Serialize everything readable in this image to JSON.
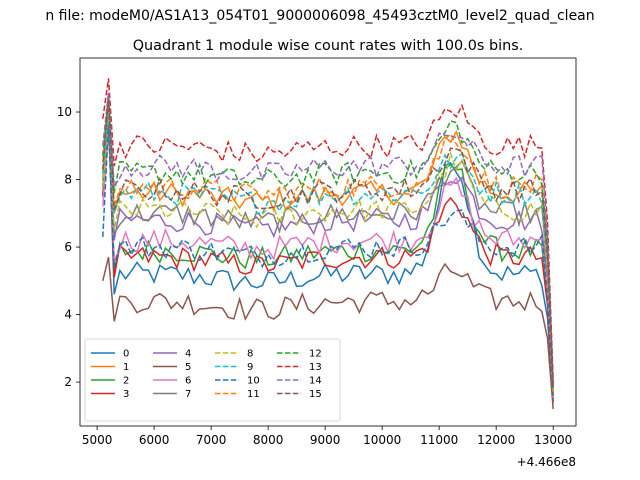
{
  "figure": {
    "suptitle": "n file: modeM0/AS1A13_054T01_9000006098_45493cztM0_level2_quad_clean",
    "offset_label": "+4.466e8"
  },
  "chart_data": {
    "type": "line",
    "title": "Quadrant 1 module wise count rates with 100.0s bins.",
    "xlabel": "",
    "ylabel": "",
    "xlim": [
      4700,
      13400
    ],
    "ylim": [
      0.7,
      11.6
    ],
    "x_offset": 446600000,
    "x_ticks": [
      5000,
      6000,
      7000,
      8000,
      9000,
      10000,
      11000,
      12000,
      13000
    ],
    "y_ticks": [
      2,
      4,
      6,
      8,
      10
    ],
    "grid": false,
    "legend": {
      "location": "lower left",
      "columns": 4
    },
    "x_start": 5100,
    "x_step": 100,
    "x_end": 13000,
    "series": [
      {
        "name": "0",
        "color": "#1f77b4",
        "dash": "solid",
        "approx_level": 5.2,
        "first": 7.5,
        "peak_value": 10.0,
        "peak_at_start": true,
        "hump": 8.6,
        "last": 1.5
      },
      {
        "name": "1",
        "color": "#ff7f0e",
        "dash": "solid",
        "approx_level": 7.6,
        "first": 8.5,
        "peak_value": 10.5,
        "peak_at_start": true,
        "hump": 9.4,
        "last": 1.6
      },
      {
        "name": "2",
        "color": "#2ca02c",
        "dash": "solid",
        "approx_level": 5.9,
        "first": 8.0,
        "peak_value": 10.2,
        "peak_at_start": true,
        "hump": 8.4,
        "last": 1.7
      },
      {
        "name": "3",
        "color": "#d62728",
        "dash": "solid",
        "approx_level": 5.7,
        "first": 7.5,
        "peak_value": 9.8,
        "peak_at_start": true,
        "hump": 7.4,
        "last": 1.4
      },
      {
        "name": "4",
        "color": "#9467bd",
        "dash": "solid",
        "approx_level": 6.8,
        "first": 7.8,
        "peak_value": 9.9,
        "peak_at_start": true,
        "hump": 8.2,
        "last": 1.5
      },
      {
        "name": "5",
        "color": "#8c564b",
        "dash": "solid",
        "approx_level": 4.4,
        "first": 5.0,
        "peak_value": 5.7,
        "peak_at_start": true,
        "hump": 5.3,
        "last": 1.2
      },
      {
        "name": "6",
        "color": "#e377c2",
        "dash": "solid",
        "approx_level": 6.2,
        "first": 7.2,
        "peak_value": 9.5,
        "peak_at_start": true,
        "hump": 7.8,
        "last": 1.5
      },
      {
        "name": "7",
        "color": "#7f7f7f",
        "dash": "solid",
        "approx_level": 7.0,
        "first": 7.8,
        "peak_value": 9.8,
        "peak_at_start": true,
        "hump": 8.4,
        "last": 1.6
      },
      {
        "name": "8",
        "color": "#bcbd22",
        "dash": "dashed",
        "approx_level": 7.1,
        "first": 7.8,
        "peak_value": 9.9,
        "peak_at_start": true,
        "hump": 8.5,
        "last": 1.7
      },
      {
        "name": "9",
        "color": "#17becf",
        "dash": "dashed",
        "approx_level": 7.6,
        "first": 8.2,
        "peak_value": 10.0,
        "peak_at_start": true,
        "hump": 8.6,
        "last": 1.8
      },
      {
        "name": "10",
        "color": "#1f77b4",
        "dash": "dashed",
        "approx_level": 6.0,
        "first": 6.3,
        "peak_value": 9.6,
        "peak_at_start": true,
        "hump": 7.0,
        "last": 1.5
      },
      {
        "name": "11",
        "color": "#ff7f0e",
        "dash": "dashed",
        "approx_level": 7.8,
        "first": 8.3,
        "peak_value": 10.3,
        "peak_at_start": true,
        "hump": 9.3,
        "last": 1.7
      },
      {
        "name": "12",
        "color": "#2ca02c",
        "dash": "dashed",
        "approx_level": 8.2,
        "first": 8.7,
        "peak_value": 10.5,
        "peak_at_start": true,
        "hump": 9.6,
        "last": 1.9
      },
      {
        "name": "13",
        "color": "#d62728",
        "dash": "dashed",
        "approx_level": 9.0,
        "first": 9.8,
        "peak_value": 11.0,
        "peak_at_start": true,
        "hump": 10.1,
        "last": 2.0
      },
      {
        "name": "14",
        "color": "#9467bd",
        "dash": "dashed",
        "approx_level": 8.4,
        "first": 9.0,
        "peak_value": 10.6,
        "peak_at_start": true,
        "hump": 9.4,
        "last": 1.9
      },
      {
        "name": "15",
        "color": "#8c564b",
        "dash": "dashed",
        "approx_level": 7.7,
        "first": 8.3,
        "peak_value": 10.4,
        "peak_at_start": true,
        "hump": 8.9,
        "last": 1.8
      }
    ]
  }
}
